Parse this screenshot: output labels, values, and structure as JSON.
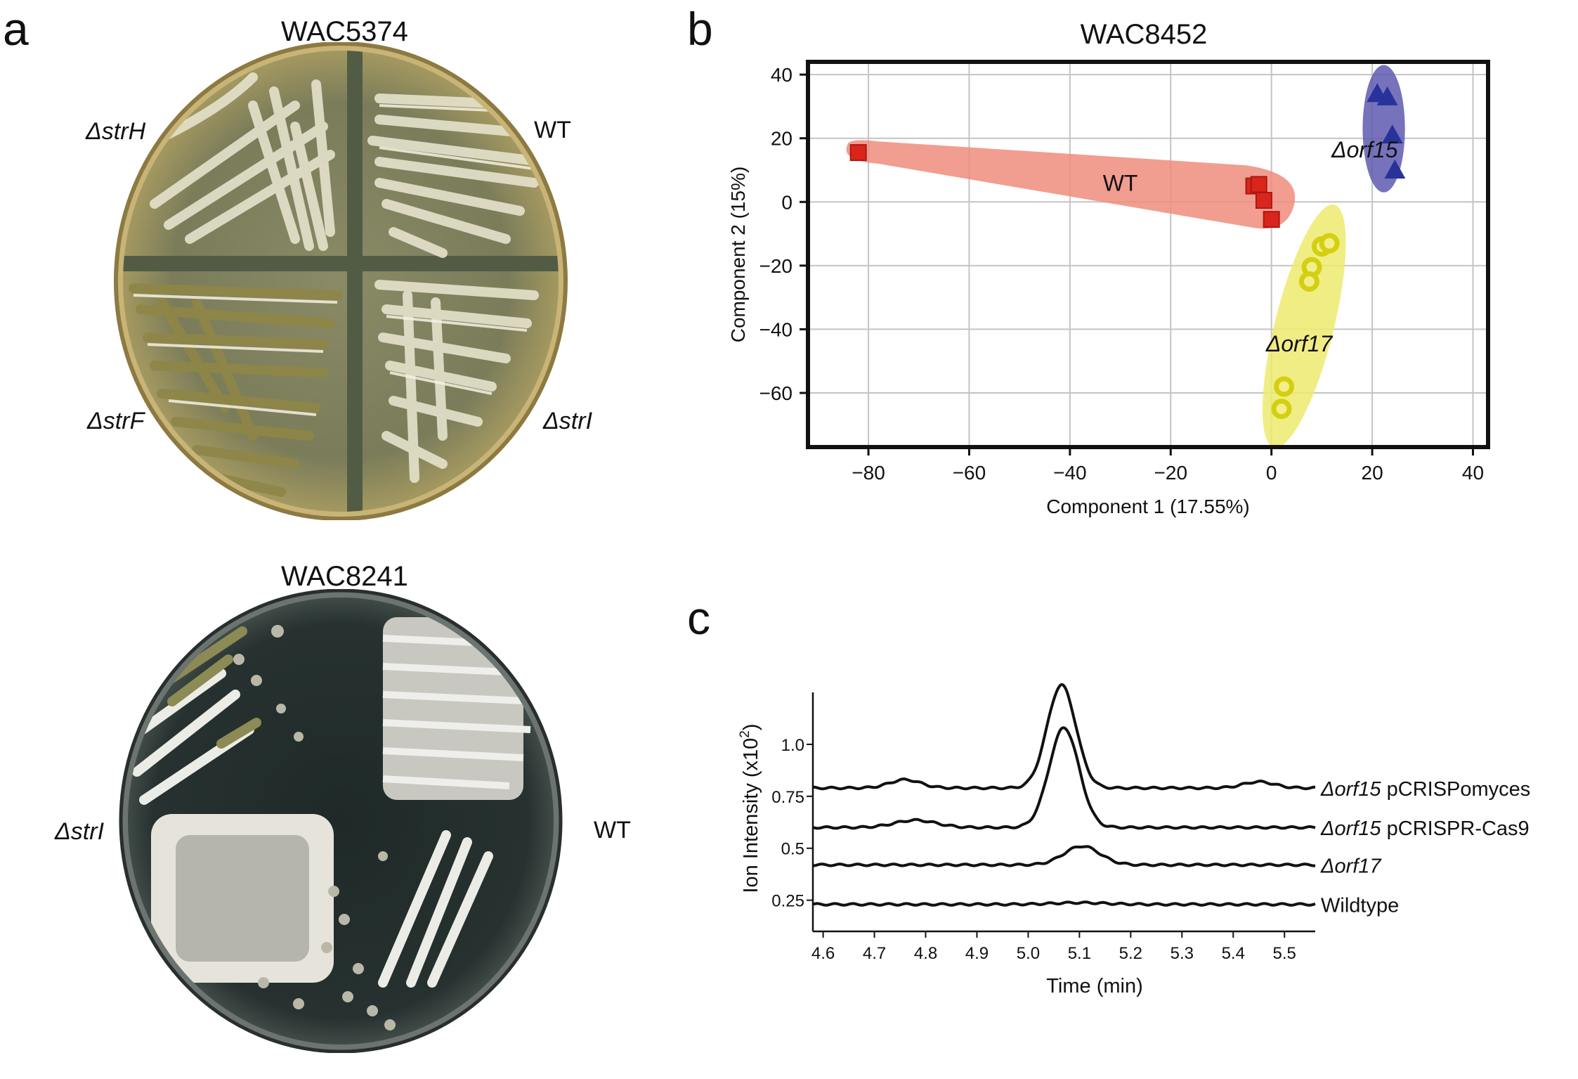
{
  "panel_a": {
    "label": "a",
    "plate1": {
      "title": "WAC5374",
      "labels": [
        "ΔstrH",
        "WT",
        "ΔstrF",
        "ΔstrI"
      ]
    },
    "plate2": {
      "title": "WAC8241",
      "labels": [
        "ΔstrI",
        "WT"
      ]
    }
  },
  "panel_b": {
    "label": "b"
  },
  "panel_c": {
    "label": "c"
  },
  "colors": {
    "wt": "#d9261c",
    "wt_ellipse": "#ef8c7c",
    "orf15": "#27339a",
    "orf15_ellipse": "#5e5ab0",
    "orf17": "#d4d010",
    "orf17_ellipse": "#eeea70"
  },
  "chart_data": [
    {
      "type": "scatter",
      "title": "WAC8452",
      "xlabel": "Component 1 (17.55%)",
      "ylabel": "Component 2 (15%)",
      "xlim": [
        -92,
        43
      ],
      "ylim": [
        -77,
        44
      ],
      "xticks": [
        -80,
        -60,
        -40,
        -20,
        0,
        20,
        40
      ],
      "yticks": [
        40,
        20,
        0,
        -20,
        -40,
        -60
      ],
      "grid": true,
      "series": [
        {
          "name": "WT",
          "label": "WT",
          "marker": "square",
          "points": [
            [
              -82,
              15.5
            ],
            [
              -3.5,
              5
            ],
            [
              -2.5,
              5.5
            ],
            [
              -1.5,
              0.5
            ],
            [
              0,
              -5.5
            ]
          ]
        },
        {
          "name": "orf15",
          "label": "Δorf15",
          "marker": "triangle",
          "points": [
            [
              21,
              34
            ],
            [
              23,
              33
            ],
            [
              24,
              21
            ],
            [
              24.5,
              10
            ]
          ]
        },
        {
          "name": "orf17",
          "label": "Δorf17",
          "marker": "circle",
          "points": [
            [
              10,
              -14
            ],
            [
              11.5,
              -13
            ],
            [
              8,
              -20.5
            ],
            [
              7.5,
              -25
            ],
            [
              2.5,
              -58
            ],
            [
              2,
              -65
            ]
          ]
        }
      ]
    },
    {
      "type": "line",
      "title": "",
      "xlabel": "Time (min)",
      "ylabel": "Ion Intensity (x10",
      "ylabel_sup": "2",
      "ylabel_end": ")",
      "xlim": [
        4.58,
        5.56
      ],
      "ylim": [
        0.1,
        1.25
      ],
      "xticks": [
        "4.6",
        "4.7",
        "4.8",
        "4.9",
        "5.0",
        "5.1",
        "5.2",
        "5.3",
        "5.4",
        "5.5"
      ],
      "yticks": [
        "0.25",
        "0.5",
        "0.75",
        "1.0"
      ],
      "series": [
        {
          "name": "Δorf15 pCRISPomyces",
          "name_italic": "Δorf15",
          "name_rest": " pCRISPomyces",
          "baseline": 0.79,
          "peak_center": 5.065,
          "peak_height": 0.495,
          "peak_width": 0.028,
          "bumps": [
            [
              4.76,
              0.04,
              0.03
            ],
            [
              5.45,
              0.03,
              0.03
            ]
          ]
        },
        {
          "name": "Δorf15 pCRISPR-Cas9",
          "name_italic": "Δorf15",
          "name_rest": " pCRISPR-Cas9",
          "baseline": 0.6,
          "peak_center": 5.07,
          "peak_height": 0.48,
          "peak_width": 0.029,
          "bumps": [
            [
              4.78,
              0.035,
              0.04
            ]
          ]
        },
        {
          "name": "Δorf17",
          "name_italic": "Δorf17",
          "name_rest": "",
          "baseline": 0.42,
          "peak_center": 5.105,
          "peak_height": 0.09,
          "peak_width": 0.035,
          "bumps": []
        },
        {
          "name": "Wildtype",
          "name_italic": "",
          "name_rest": "Wildtype",
          "baseline": 0.23,
          "peak_center": 5.1,
          "peak_height": 0.008,
          "peak_width": 0.05,
          "bumps": []
        }
      ]
    }
  ]
}
